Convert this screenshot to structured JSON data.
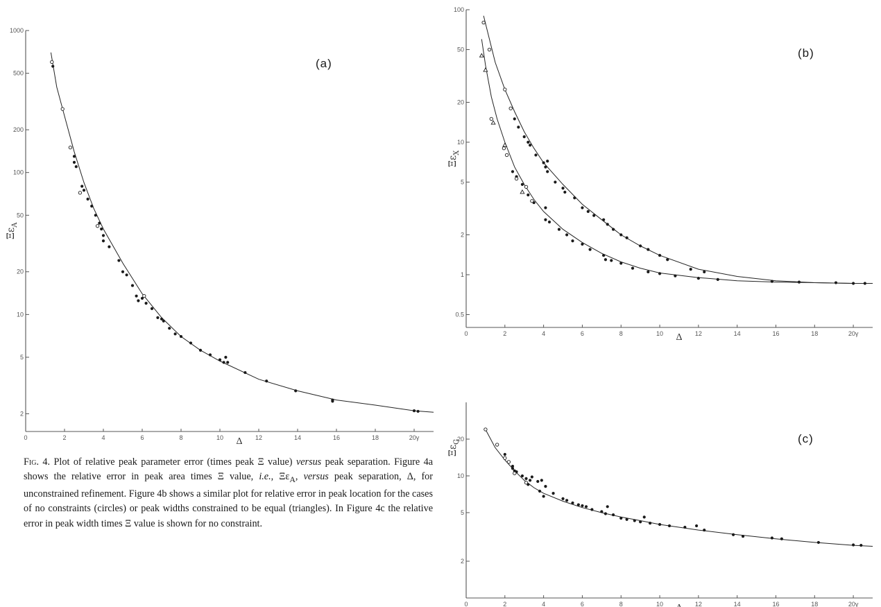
{
  "caption": {
    "lead": "Fig. 4.",
    "part1": " Plot of relative peak parameter error (times peak Ξ value) ",
    "versus1": "versus",
    "part2": " peak separation. Figure 4a shows the relative error in peak area times Ξ value, ",
    "ie": "i.e.",
    "part3": ", Ξε",
    "sub_a": "A",
    "part4": ", ",
    "versus2": "versus",
    "part5": " peak separation, Δ, for unconstrained refinement. Figure 4b shows a similar plot for relative error in peak location for the cases of no constraints (circles) or peak widths constrained to be equal (triangles). In Figure 4c the relative error in peak width times Ξ value is shown for no constraint."
  },
  "chart_data": [
    {
      "panel": "a",
      "label": "(a)",
      "type": "scatter",
      "yscale": "log",
      "ylabel_symbol": "Ξε",
      "ylabel_sub": "A",
      "xlabel": "Δ",
      "xlim": [
        0,
        21
      ],
      "ylim": [
        1.5,
        1000
      ],
      "x_tick_labels": [
        "0",
        "2",
        "4",
        "6",
        "8",
        "10",
        "12",
        "14",
        "16",
        "18",
        "20γ"
      ],
      "y_tick_values": [
        2,
        5,
        10,
        20,
        50,
        100,
        200,
        500,
        1000
      ],
      "y_tick_labels": [
        "2",
        "5",
        "10",
        "20",
        "50",
        "100",
        "200",
        "500",
        "1000"
      ],
      "curve": {
        "points": [
          [
            1.3,
            700
          ],
          [
            1.6,
            400
          ],
          [
            2,
            250
          ],
          [
            2.5,
            140
          ],
          [
            3,
            85
          ],
          [
            3.5,
            56
          ],
          [
            4,
            40
          ],
          [
            5,
            23
          ],
          [
            6,
            14
          ],
          [
            7,
            9.5
          ],
          [
            8,
            7
          ],
          [
            9,
            5.6
          ],
          [
            10,
            4.7
          ],
          [
            12,
            3.5
          ],
          [
            14,
            2.9
          ],
          [
            16,
            2.5
          ],
          [
            18,
            2.3
          ],
          [
            20,
            2.1
          ],
          [
            21,
            2.05
          ]
        ]
      },
      "series": [
        {
          "marker": "filled",
          "points": [
            [
              1.4,
              560
            ],
            [
              2.5,
              130
            ],
            [
              2.5,
              118
            ],
            [
              2.6,
              110
            ],
            [
              2.9,
              80
            ],
            [
              3.0,
              75
            ],
            [
              3.2,
              65
            ],
            [
              3.4,
              58
            ],
            [
              3.6,
              50
            ],
            [
              3.8,
              44
            ],
            [
              3.9,
              40
            ],
            [
              4.0,
              36
            ],
            [
              4.0,
              33
            ],
            [
              4.3,
              30
            ],
            [
              4.8,
              24
            ],
            [
              5.0,
              20
            ],
            [
              5.2,
              19
            ],
            [
              5.5,
              16
            ],
            [
              5.7,
              13.5
            ],
            [
              5.8,
              12.5
            ],
            [
              6.0,
              13
            ],
            [
              6.2,
              12
            ],
            [
              6.5,
              11
            ],
            [
              6.8,
              9.5
            ],
            [
              7.0,
              9.3
            ],
            [
              7.1,
              9
            ],
            [
              7.4,
              8
            ],
            [
              7.7,
              7.3
            ],
            [
              8.0,
              7
            ],
            [
              8.5,
              6.3
            ],
            [
              9,
              5.6
            ],
            [
              9.5,
              5.2
            ],
            [
              10,
              4.8
            ],
            [
              10.2,
              4.6
            ],
            [
              10.3,
              5
            ],
            [
              10.4,
              4.6
            ],
            [
              11.3,
              3.9
            ],
            [
              12.4,
              3.4
            ],
            [
              13.9,
              2.9
            ],
            [
              15.8,
              2.5
            ],
            [
              15.8,
              2.45
            ],
            [
              20,
              2.1
            ],
            [
              20.2,
              2.08
            ]
          ]
        },
        {
          "marker": "open",
          "points": [
            [
              1.35,
              600
            ],
            [
              1.9,
              280
            ],
            [
              2.3,
              150
            ],
            [
              2.8,
              72
            ],
            [
              3.7,
              42
            ],
            [
              6.1,
              13.5
            ]
          ]
        }
      ]
    },
    {
      "panel": "b",
      "label": "(b)",
      "type": "scatter",
      "yscale": "log",
      "ylabel_symbol": "Ξε",
      "ylabel_sub": "X",
      "xlabel": "Δ",
      "xlim": [
        0,
        21
      ],
      "ylim": [
        0.4,
        100
      ],
      "x_tick_labels": [
        "0",
        "2",
        "4",
        "6",
        "8",
        "10",
        "12",
        "14",
        "16",
        "18",
        "20γ"
      ],
      "y_tick_values": [
        0.5,
        1,
        2,
        5,
        10,
        20,
        50,
        100
      ],
      "y_tick_labels": [
        "0.5",
        "1",
        "2",
        "5",
        "10",
        "20",
        "50",
        "100"
      ],
      "curves": [
        {
          "points": [
            [
              0.9,
              90
            ],
            [
              1.2,
              60
            ],
            [
              1.5,
              40
            ],
            [
              2,
              25
            ],
            [
              2.5,
              17
            ],
            [
              3,
              12
            ],
            [
              3.5,
              9
            ],
            [
              4,
              7
            ],
            [
              5,
              4.8
            ],
            [
              6,
              3.4
            ],
            [
              7,
              2.6
            ],
            [
              8,
              2.0
            ],
            [
              9,
              1.65
            ],
            [
              10,
              1.4
            ],
            [
              12,
              1.1
            ],
            [
              14,
              0.97
            ],
            [
              16,
              0.9
            ],
            [
              18,
              0.87
            ],
            [
              20,
              0.86
            ],
            [
              21,
              0.86
            ]
          ]
        },
        {
          "points": [
            [
              0.8,
              60
            ],
            [
              1.0,
              38
            ],
            [
              1.3,
              22
            ],
            [
              1.6,
              15
            ],
            [
              2,
              10
            ],
            [
              2.5,
              6.5
            ],
            [
              3,
              4.8
            ],
            [
              3.5,
              3.7
            ],
            [
              4,
              3.0
            ],
            [
              5,
              2.2
            ],
            [
              6,
              1.75
            ],
            [
              7,
              1.45
            ],
            [
              8,
              1.25
            ],
            [
              9,
              1.12
            ],
            [
              10,
              1.03
            ],
            [
              12,
              0.95
            ],
            [
              14,
              0.9
            ],
            [
              16,
              0.88
            ],
            [
              18,
              0.87
            ],
            [
              20,
              0.86
            ],
            [
              21,
              0.86
            ]
          ]
        }
      ],
      "series": [
        {
          "marker": "filled",
          "points": [
            [
              2.5,
              15
            ],
            [
              2.7,
              13
            ],
            [
              3.0,
              11
            ],
            [
              3.2,
              10
            ],
            [
              3.3,
              9.5
            ],
            [
              3.6,
              8
            ],
            [
              4.0,
              7
            ],
            [
              4.1,
              6.5
            ],
            [
              4.2,
              6
            ],
            [
              4.2,
              7.2
            ],
            [
              4.6,
              5
            ],
            [
              5.0,
              4.5
            ],
            [
              5.1,
              4.2
            ],
            [
              5.6,
              3.8
            ],
            [
              6.0,
              3.2
            ],
            [
              6.3,
              3
            ],
            [
              6.6,
              2.8
            ],
            [
              7.1,
              2.6
            ],
            [
              7.3,
              2.4
            ],
            [
              7.6,
              2.2
            ],
            [
              8.0,
              2.0
            ],
            [
              8.3,
              1.9
            ],
            [
              9.0,
              1.65
            ],
            [
              9.4,
              1.55
            ],
            [
              10.0,
              1.4
            ],
            [
              10.4,
              1.3
            ],
            [
              11.6,
              1.1
            ],
            [
              12.3,
              1.05
            ],
            [
              2.4,
              6
            ],
            [
              2.6,
              5.5
            ],
            [
              2.9,
              4.8
            ],
            [
              3.2,
              4
            ],
            [
              3.5,
              3.5
            ],
            [
              4.1,
              3.2
            ],
            [
              4.1,
              2.6
            ],
            [
              4.3,
              2.5
            ],
            [
              4.8,
              2.2
            ],
            [
              5.2,
              2
            ],
            [
              5.5,
              1.8
            ],
            [
              6.0,
              1.7
            ],
            [
              6.4,
              1.55
            ],
            [
              7.1,
              1.4
            ],
            [
              7.2,
              1.3
            ],
            [
              7.5,
              1.28
            ],
            [
              8.0,
              1.22
            ],
            [
              8.6,
              1.12
            ],
            [
              9.4,
              1.05
            ],
            [
              10.0,
              1.02
            ],
            [
              10.8,
              0.98
            ],
            [
              12,
              0.94
            ],
            [
              13,
              0.92
            ],
            [
              15.8,
              0.89
            ],
            [
              17.2,
              0.88
            ],
            [
              19.1,
              0.87
            ],
            [
              20,
              0.86
            ],
            [
              20.6,
              0.86
            ]
          ]
        },
        {
          "marker": "open",
          "points": [
            [
              0.9,
              80
            ],
            [
              1.2,
              50
            ],
            [
              2.0,
              25
            ],
            [
              2.3,
              18
            ],
            [
              1.3,
              15
            ],
            [
              1.95,
              9
            ],
            [
              2.1,
              8
            ],
            [
              2.6,
              5.3
            ],
            [
              3.1,
              4.6
            ],
            [
              3.4,
              3.6
            ]
          ]
        },
        {
          "marker": "triangle",
          "points": [
            [
              0.8,
              45
            ],
            [
              1.0,
              35
            ],
            [
              1.4,
              14
            ],
            [
              2.0,
              9.5
            ],
            [
              2.9,
              4.2
            ]
          ]
        }
      ]
    },
    {
      "panel": "c",
      "label": "(c)",
      "type": "scatter",
      "yscale": "log",
      "ylabel_symbol": "Ξε",
      "ylabel_sub": "G",
      "xlabel": "Δ",
      "xlim": [
        0,
        21
      ],
      "ylim": [
        1,
        40
      ],
      "x_tick_labels": [
        "0",
        "2",
        "4",
        "6",
        "8",
        "10",
        "12",
        "14",
        "16",
        "18",
        "20γ"
      ],
      "y_tick_values": [
        2,
        5,
        10,
        20
      ],
      "y_tick_labels": [
        "2",
        "5",
        "10",
        "20"
      ],
      "curve": {
        "points": [
          [
            1,
            24
          ],
          [
            1.5,
            17
          ],
          [
            2,
            13.5
          ],
          [
            2.5,
            11
          ],
          [
            3,
            9.2
          ],
          [
            3.5,
            8
          ],
          [
            4,
            7.2
          ],
          [
            5,
            6.2
          ],
          [
            6,
            5.5
          ],
          [
            7,
            5
          ],
          [
            8,
            4.6
          ],
          [
            9,
            4.3
          ],
          [
            10,
            4
          ],
          [
            12,
            3.6
          ],
          [
            14,
            3.3
          ],
          [
            16,
            3.05
          ],
          [
            18,
            2.85
          ],
          [
            20,
            2.7
          ],
          [
            21,
            2.65
          ]
        ]
      },
      "series": [
        {
          "marker": "filled",
          "points": [
            [
              2.4,
              12
            ],
            [
              2.5,
              11
            ],
            [
              2.6,
              10.8
            ],
            [
              2.9,
              10
            ],
            [
              3.1,
              9.5
            ],
            [
              3.2,
              8.5
            ],
            [
              3.4,
              9.8
            ],
            [
              3.7,
              9
            ],
            [
              3.8,
              7.5
            ],
            [
              3.9,
              9.2
            ],
            [
              4.0,
              6.8
            ],
            [
              4.1,
              8.2
            ],
            [
              4.5,
              7.2
            ],
            [
              5.0,
              6.5
            ],
            [
              5.2,
              6.3
            ],
            [
              5.5,
              6
            ],
            [
              5.8,
              5.8
            ],
            [
              6.0,
              5.7
            ],
            [
              6.2,
              5.6
            ],
            [
              6.5,
              5.3
            ],
            [
              7.0,
              5.1
            ],
            [
              7.2,
              4.9
            ],
            [
              7.3,
              5.6
            ],
            [
              7.6,
              4.8
            ],
            [
              8.0,
              4.5
            ],
            [
              8.3,
              4.4
            ],
            [
              8.7,
              4.3
            ],
            [
              9.0,
              4.2
            ],
            [
              9.2,
              4.6
            ],
            [
              9.5,
              4.1
            ],
            [
              10.0,
              4.0
            ],
            [
              10.5,
              3.9
            ],
            [
              11.3,
              3.8
            ],
            [
              11.9,
              3.9
            ],
            [
              12.3,
              3.6
            ],
            [
              13.8,
              3.3
            ],
            [
              14.3,
              3.2
            ],
            [
              15.8,
              3.1
            ],
            [
              16.3,
              3.05
            ],
            [
              18.2,
              2.85
            ],
            [
              20,
              2.72
            ],
            [
              20.4,
              2.7
            ],
            [
              2.0,
              15
            ],
            [
              2.4,
              11.5
            ],
            [
              3.3,
              9.2
            ]
          ]
        },
        {
          "marker": "open",
          "points": [
            [
              1.0,
              24
            ],
            [
              1.6,
              18
            ],
            [
              2.0,
              14
            ],
            [
              2.2,
              13
            ],
            [
              3.1,
              8.8
            ],
            [
              2.5,
              10.5
            ]
          ]
        }
      ]
    }
  ]
}
